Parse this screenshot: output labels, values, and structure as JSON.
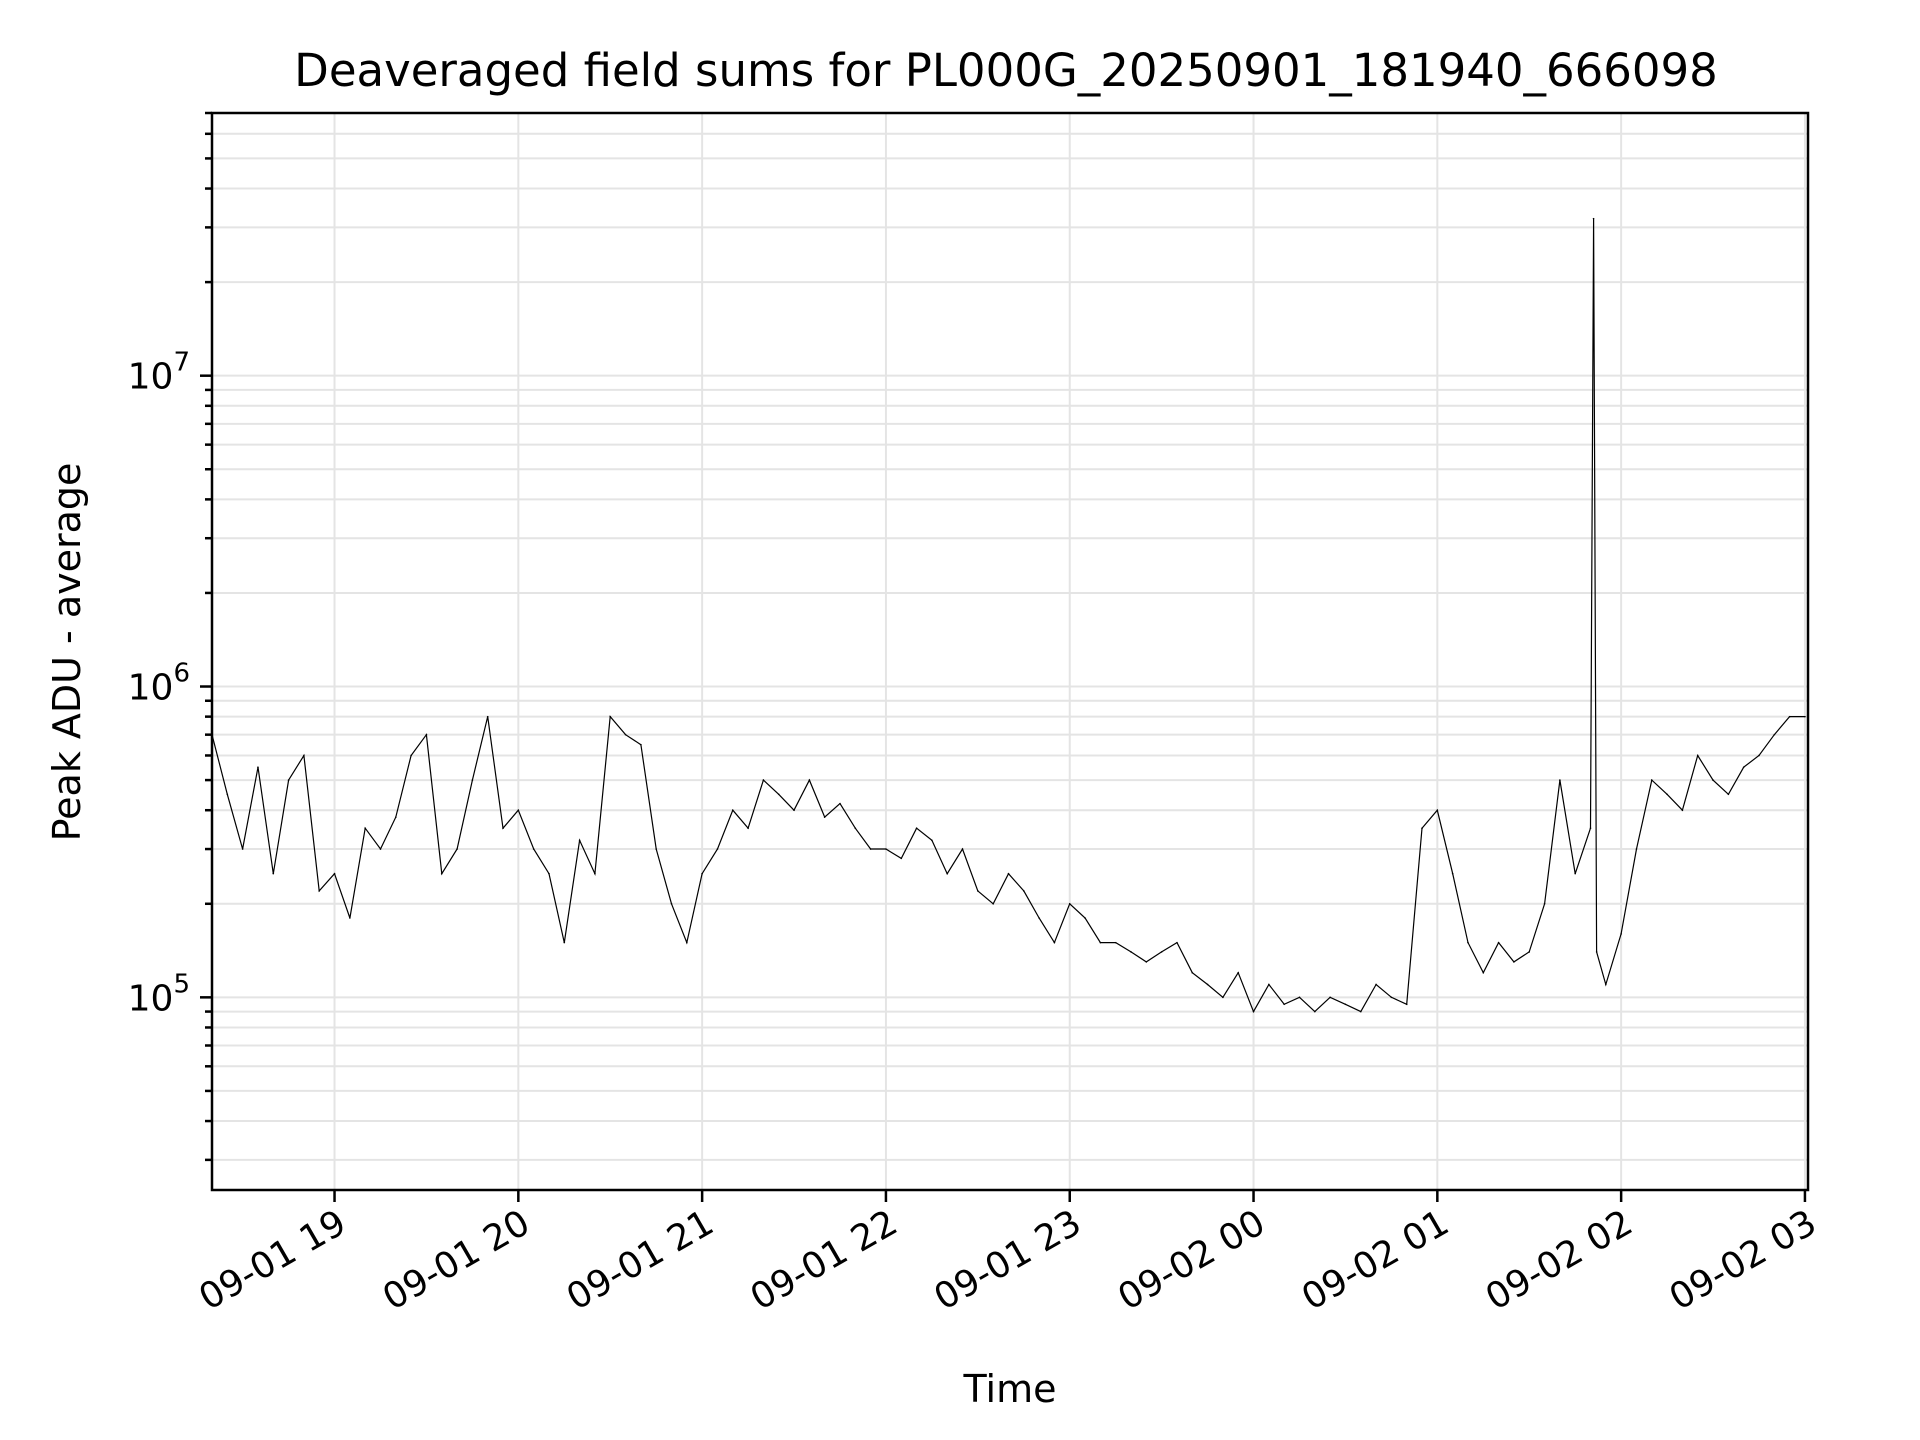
{
  "chart_data": {
    "type": "line",
    "title": "Deaveraged field sums for PL000G_20250901_181940_666098",
    "xlabel": "Time",
    "ylabel": "Peak ADU - average",
    "yscale": "log",
    "grid": true,
    "xlim": [
      "2025-09-01T18:20:00",
      "2025-09-02T03:01:00"
    ],
    "ylim": [
      24000,
      70000000
    ],
    "x_ticks": [
      {
        "t": "2025-09-01T19:00:00",
        "label": "09-01 19"
      },
      {
        "t": "2025-09-01T20:00:00",
        "label": "09-01 20"
      },
      {
        "t": "2025-09-01T21:00:00",
        "label": "09-01 21"
      },
      {
        "t": "2025-09-01T22:00:00",
        "label": "09-01 22"
      },
      {
        "t": "2025-09-01T23:00:00",
        "label": "09-01 23"
      },
      {
        "t": "2025-09-02T00:00:00",
        "label": "09-02 00"
      },
      {
        "t": "2025-09-02T01:00:00",
        "label": "09-02 01"
      },
      {
        "t": "2025-09-02T02:00:00",
        "label": "09-02 02"
      },
      {
        "t": "2025-09-02T03:00:00",
        "label": "09-02 03"
      }
    ],
    "y_ticks": [
      {
        "value": 100000,
        "base": "10",
        "exp": "5"
      },
      {
        "value": 1000000,
        "base": "10",
        "exp": "6"
      },
      {
        "value": 10000000,
        "base": "10",
        "exp": "7"
      }
    ],
    "series": [
      {
        "color": "#000000",
        "x": [
          "2025-09-01T18:20:00",
          "2025-09-01T18:25:00",
          "2025-09-01T18:30:00",
          "2025-09-01T18:35:00",
          "2025-09-01T18:40:00",
          "2025-09-01T18:45:00",
          "2025-09-01T18:50:00",
          "2025-09-01T18:55:00",
          "2025-09-01T19:00:00",
          "2025-09-01T19:05:00",
          "2025-09-01T19:10:00",
          "2025-09-01T19:15:00",
          "2025-09-01T19:20:00",
          "2025-09-01T19:25:00",
          "2025-09-01T19:30:00",
          "2025-09-01T19:35:00",
          "2025-09-01T19:40:00",
          "2025-09-01T19:45:00",
          "2025-09-01T19:50:00",
          "2025-09-01T19:55:00",
          "2025-09-01T20:00:00",
          "2025-09-01T20:05:00",
          "2025-09-01T20:10:00",
          "2025-09-01T20:15:00",
          "2025-09-01T20:20:00",
          "2025-09-01T20:25:00",
          "2025-09-01T20:30:00",
          "2025-09-01T20:35:00",
          "2025-09-01T20:40:00",
          "2025-09-01T20:45:00",
          "2025-09-01T20:50:00",
          "2025-09-01T20:55:00",
          "2025-09-01T21:00:00",
          "2025-09-01T21:05:00",
          "2025-09-01T21:10:00",
          "2025-09-01T21:15:00",
          "2025-09-01T21:20:00",
          "2025-09-01T21:25:00",
          "2025-09-01T21:30:00",
          "2025-09-01T21:35:00",
          "2025-09-01T21:40:00",
          "2025-09-01T21:45:00",
          "2025-09-01T21:50:00",
          "2025-09-01T21:55:00",
          "2025-09-01T22:00:00",
          "2025-09-01T22:05:00",
          "2025-09-01T22:10:00",
          "2025-09-01T22:15:00",
          "2025-09-01T22:20:00",
          "2025-09-01T22:25:00",
          "2025-09-01T22:30:00",
          "2025-09-01T22:35:00",
          "2025-09-01T22:40:00",
          "2025-09-01T22:45:00",
          "2025-09-01T22:50:00",
          "2025-09-01T22:55:00",
          "2025-09-01T23:00:00",
          "2025-09-01T23:05:00",
          "2025-09-01T23:10:00",
          "2025-09-01T23:15:00",
          "2025-09-01T23:20:00",
          "2025-09-01T23:25:00",
          "2025-09-01T23:30:00",
          "2025-09-01T23:35:00",
          "2025-09-01T23:40:00",
          "2025-09-01T23:45:00",
          "2025-09-01T23:50:00",
          "2025-09-01T23:55:00",
          "2025-09-02T00:00:00",
          "2025-09-02T00:05:00",
          "2025-09-02T00:10:00",
          "2025-09-02T00:15:00",
          "2025-09-02T00:20:00",
          "2025-09-02T00:25:00",
          "2025-09-02T00:30:00",
          "2025-09-02T00:35:00",
          "2025-09-02T00:40:00",
          "2025-09-02T00:45:00",
          "2025-09-02T00:50:00",
          "2025-09-02T00:55:00",
          "2025-09-02T01:00:00",
          "2025-09-02T01:05:00",
          "2025-09-02T01:10:00",
          "2025-09-02T01:15:00",
          "2025-09-02T01:20:00",
          "2025-09-02T01:25:00",
          "2025-09-02T01:30:00",
          "2025-09-02T01:35:00",
          "2025-09-02T01:40:00",
          "2025-09-02T01:45:00",
          "2025-09-02T01:50:00",
          "2025-09-02T01:51:00",
          "2025-09-02T01:52:00",
          "2025-09-02T01:55:00",
          "2025-09-02T02:00:00",
          "2025-09-02T02:05:00",
          "2025-09-02T02:10:00",
          "2025-09-02T02:15:00",
          "2025-09-02T02:20:00",
          "2025-09-02T02:25:00",
          "2025-09-02T02:30:00",
          "2025-09-02T02:35:00",
          "2025-09-02T02:40:00",
          "2025-09-02T02:45:00",
          "2025-09-02T02:50:00",
          "2025-09-02T02:55:00",
          "2025-09-02T03:00:00"
        ],
        "y": [
          700000,
          450000,
          300000,
          550000,
          250000,
          500000,
          600000,
          220000,
          250000,
          180000,
          350000,
          300000,
          380000,
          600000,
          700000,
          250000,
          300000,
          500000,
          800000,
          350000,
          400000,
          300000,
          250000,
          150000,
          320000,
          250000,
          800000,
          700000,
          650000,
          300000,
          200000,
          150000,
          250000,
          300000,
          400000,
          350000,
          500000,
          450000,
          400000,
          500000,
          380000,
          420000,
          350000,
          300000,
          300000,
          280000,
          350000,
          320000,
          250000,
          300000,
          220000,
          200000,
          250000,
          220000,
          180000,
          150000,
          200000,
          180000,
          150000,
          150000,
          140000,
          130000,
          140000,
          150000,
          120000,
          110000,
          100000,
          120000,
          90000,
          110000,
          95000,
          100000,
          90000,
          100000,
          95000,
          90000,
          110000,
          100000,
          95000,
          350000,
          400000,
          250000,
          150000,
          120000,
          150000,
          130000,
          140000,
          200000,
          500000,
          250000,
          350000,
          32000000,
          140000,
          110000,
          160000,
          300000,
          500000,
          450000,
          400000,
          600000,
          500000,
          450000,
          550000,
          600000,
          700000,
          800000,
          800000
        ]
      }
    ]
  }
}
